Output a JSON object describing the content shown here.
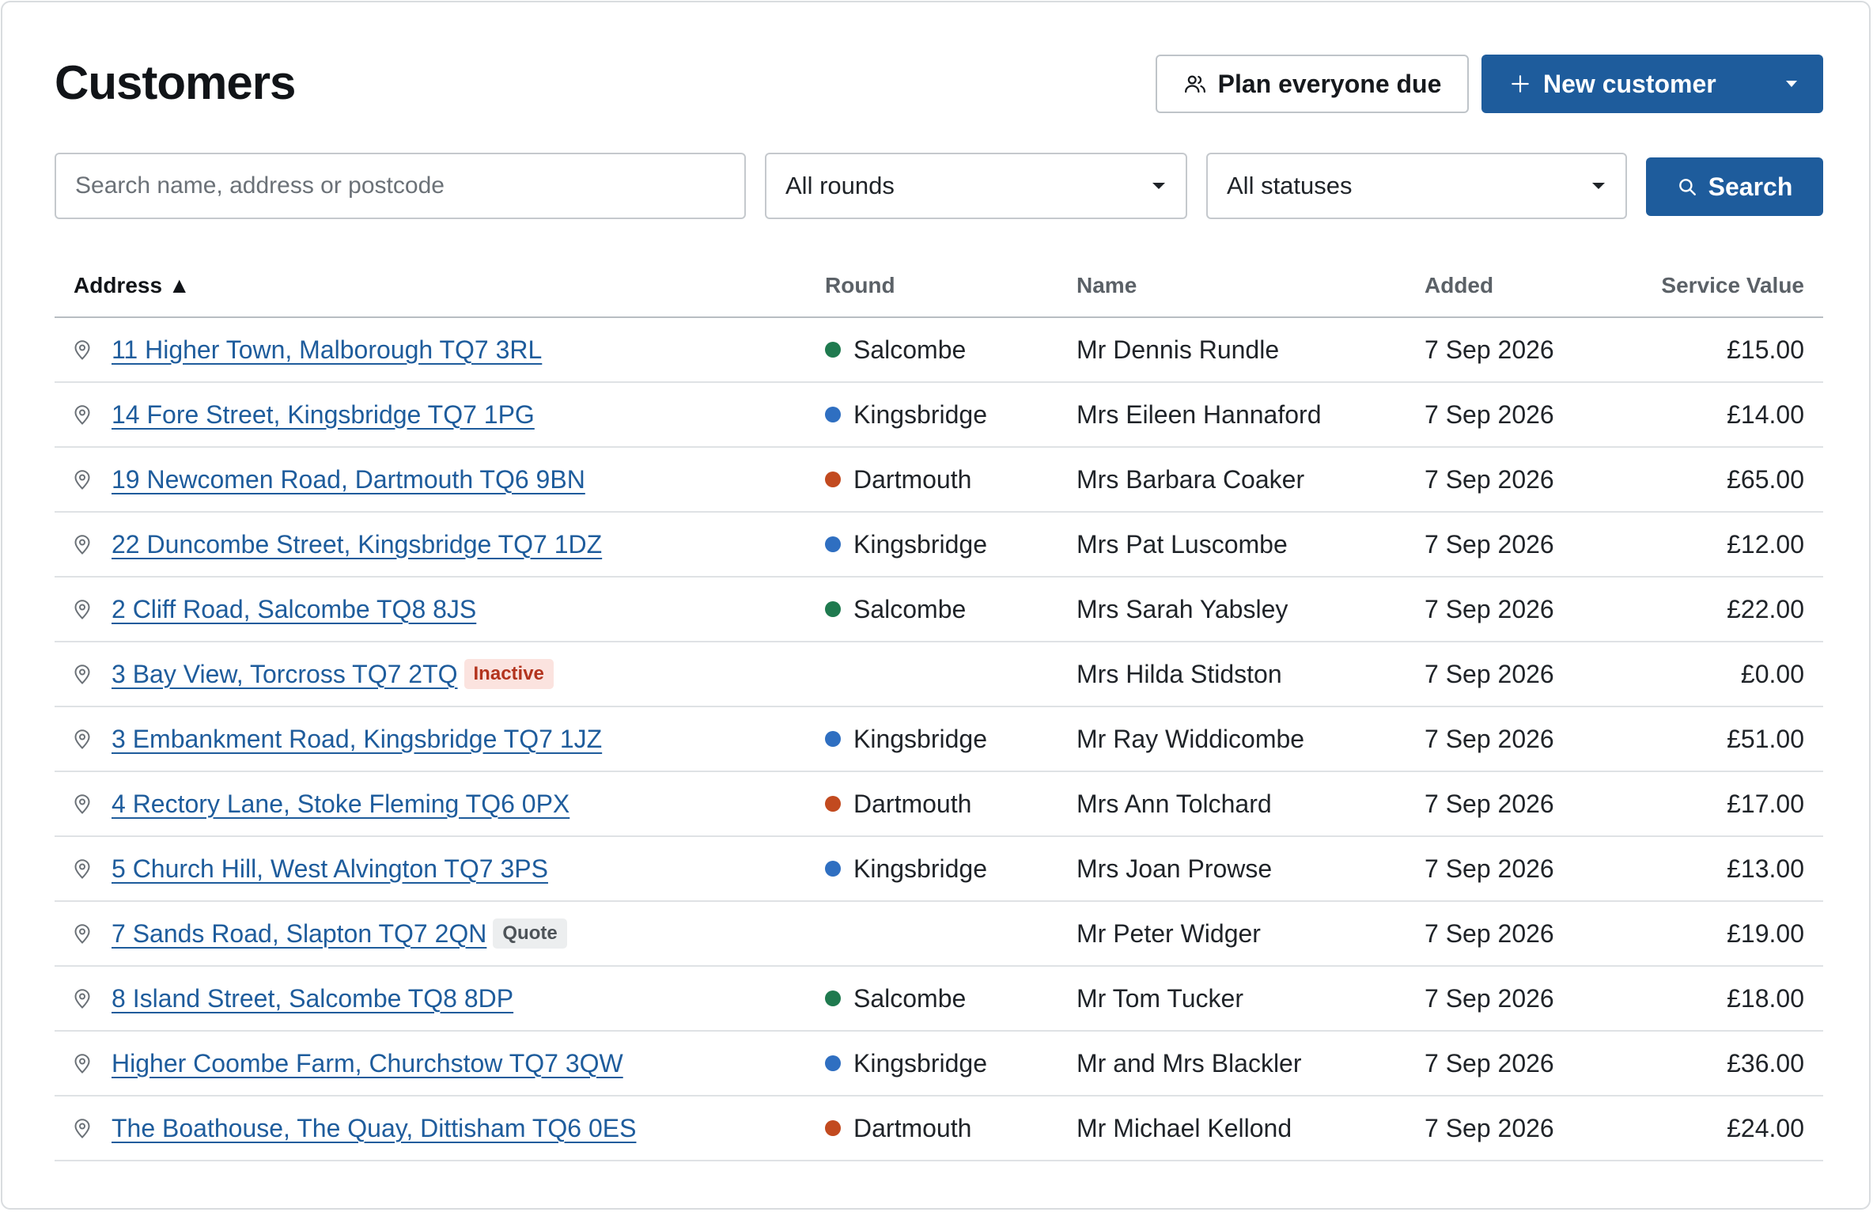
{
  "page": {
    "title": "Customers"
  },
  "actions": {
    "plan_label": "Plan everyone due",
    "new_customer_label": "New customer"
  },
  "filters": {
    "search_placeholder": "Search name, address or postcode",
    "rounds_value": "All rounds",
    "statuses_value": "All statuses",
    "search_button": "Search"
  },
  "table": {
    "headers": {
      "address": "Address ▲",
      "round": "Round",
      "name": "Name",
      "added": "Added",
      "service_value": "Service Value"
    },
    "rows": [
      {
        "address": "11 Higher Town, Malborough TQ7 3RL",
        "badge": "",
        "round": "Salcombe",
        "round_color": "#1f7a4f",
        "name": "Mr Dennis Rundle",
        "added": "7 Sep 2026",
        "value": "£15.00"
      },
      {
        "address": "14 Fore Street, Kingsbridge TQ7 1PG",
        "badge": "",
        "round": "Kingsbridge",
        "round_color": "#2f6fc1",
        "name": "Mrs Eileen Hannaford",
        "added": "7 Sep 2026",
        "value": "£14.00"
      },
      {
        "address": "19 Newcomen Road, Dartmouth TQ6 9BN",
        "badge": "",
        "round": "Dartmouth",
        "round_color": "#c24a1f",
        "name": "Mrs Barbara Coaker",
        "added": "7 Sep 2026",
        "value": "£65.00"
      },
      {
        "address": "22 Duncombe Street, Kingsbridge TQ7 1DZ",
        "badge": "",
        "round": "Kingsbridge",
        "round_color": "#2f6fc1",
        "name": "Mrs Pat Luscombe",
        "added": "7 Sep 2026",
        "value": "£12.00"
      },
      {
        "address": "2 Cliff Road, Salcombe TQ8 8JS",
        "badge": "",
        "round": "Salcombe",
        "round_color": "#1f7a4f",
        "name": "Mrs Sarah Yabsley",
        "added": "7 Sep 2026",
        "value": "£22.00"
      },
      {
        "address": "3 Bay View, Torcross TQ7 2TQ",
        "badge": "Inactive",
        "badge_type": "inactive",
        "round": "",
        "round_color": "",
        "name": "Mrs Hilda Stidston",
        "added": "7 Sep 2026",
        "value": "£0.00"
      },
      {
        "address": "3 Embankment Road, Kingsbridge TQ7 1JZ",
        "badge": "",
        "round": "Kingsbridge",
        "round_color": "#2f6fc1",
        "name": "Mr Ray Widdicombe",
        "added": "7 Sep 2026",
        "value": "£51.00"
      },
      {
        "address": "4 Rectory Lane, Stoke Fleming TQ6 0PX",
        "badge": "",
        "round": "Dartmouth",
        "round_color": "#c24a1f",
        "name": "Mrs Ann Tolchard",
        "added": "7 Sep 2026",
        "value": "£17.00"
      },
      {
        "address": "5 Church Hill, West Alvington TQ7 3PS",
        "badge": "",
        "round": "Kingsbridge",
        "round_color": "#2f6fc1",
        "name": "Mrs Joan Prowse",
        "added": "7 Sep 2026",
        "value": "£13.00"
      },
      {
        "address": "7 Sands Road, Slapton TQ7 2QN",
        "badge": "Quote",
        "badge_type": "quote",
        "round": "",
        "round_color": "",
        "name": "Mr Peter Widger",
        "added": "7 Sep 2026",
        "value": "£19.00"
      },
      {
        "address": "8 Island Street, Salcombe TQ8 8DP",
        "badge": "",
        "round": "Salcombe",
        "round_color": "#1f7a4f",
        "name": "Mr Tom Tucker",
        "added": "7 Sep 2026",
        "value": "£18.00"
      },
      {
        "address": "Higher Coombe Farm, Churchstow TQ7 3QW",
        "badge": "",
        "round": "Kingsbridge",
        "round_color": "#2f6fc1",
        "name": "Mr and Mrs Blackler",
        "added": "7 Sep 2026",
        "value": "£36.00"
      },
      {
        "address": "The Boathouse, The Quay, Dittisham TQ6 0ES",
        "badge": "",
        "round": "Dartmouth",
        "round_color": "#c24a1f",
        "name": "Mr Michael Kellond",
        "added": "7 Sep 2026",
        "value": "£24.00"
      }
    ]
  },
  "icons": {
    "plan": "users-icon",
    "new_customer": "plus-icon",
    "dropdown": "caret-down-icon",
    "search": "search-icon",
    "row": "map-pin-icon"
  },
  "colors": {
    "primary": "#1e5c9c",
    "link": "#1e5c9c",
    "salcombe": "#1f7a4f",
    "kingsbridge": "#2f6fc1",
    "dartmouth": "#c24a1f"
  }
}
